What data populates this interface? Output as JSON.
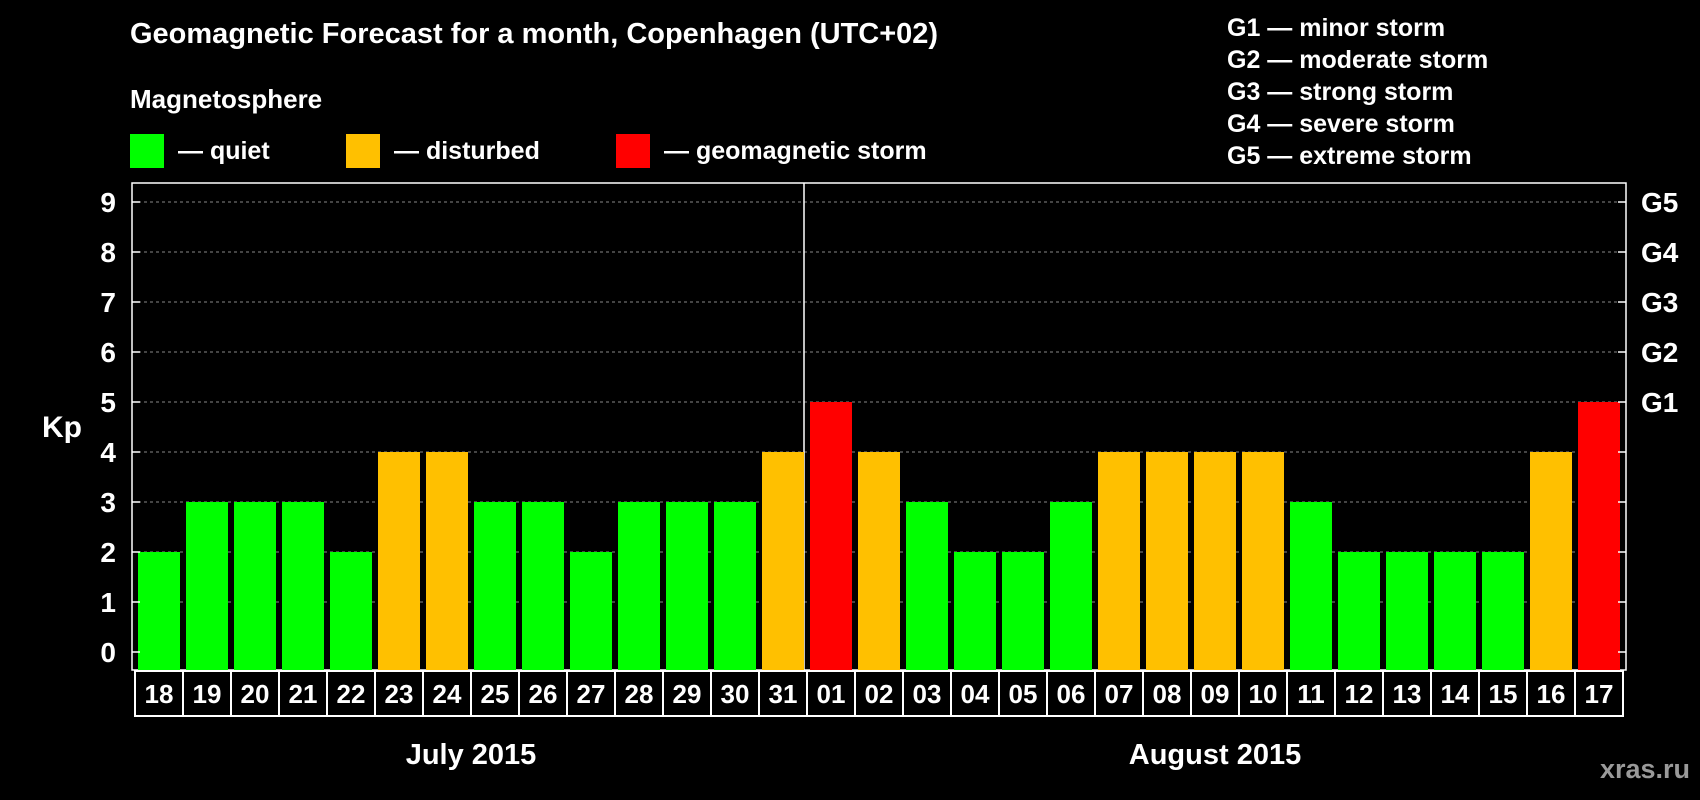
{
  "title": "Geomagnetic Forecast for a month, Copenhagen (UTC+02)",
  "magnetosphere_label": "Magnetosphere",
  "legend": [
    {
      "color": "#00ff00",
      "label": "— quiet"
    },
    {
      "color": "#ffc000",
      "label": "— disturbed"
    },
    {
      "color": "#ff0000",
      "label": "— geomagnetic storm"
    }
  ],
  "storm_scale": [
    "G1 — minor storm",
    "G2 — moderate storm",
    "G3 — strong storm",
    "G4 — severe storm",
    "G5 — extreme storm"
  ],
  "watermark": "xras.ru",
  "chart_data": {
    "type": "bar",
    "ylabel": "Kp",
    "ylim": [
      0,
      9
    ],
    "yticks": [
      0,
      1,
      2,
      3,
      4,
      5,
      6,
      7,
      8,
      9
    ],
    "right_axis_labels": [
      {
        "kp": 5,
        "label": "G1"
      },
      {
        "kp": 6,
        "label": "G2"
      },
      {
        "kp": 7,
        "label": "G3"
      },
      {
        "kp": 8,
        "label": "G4"
      },
      {
        "kp": 9,
        "label": "G5"
      }
    ],
    "grid": true,
    "categories": [
      "18",
      "19",
      "20",
      "21",
      "22",
      "23",
      "24",
      "25",
      "26",
      "27",
      "28",
      "29",
      "30",
      "31",
      "01",
      "02",
      "03",
      "04",
      "05",
      "06",
      "07",
      "08",
      "09",
      "10",
      "11",
      "12",
      "13",
      "14",
      "15",
      "16",
      "17"
    ],
    "values": [
      2,
      3,
      3,
      3,
      2,
      4,
      4,
      3,
      3,
      2,
      3,
      3,
      3,
      4,
      5,
      4,
      3,
      2,
      2,
      3,
      4,
      4,
      4,
      4,
      3,
      2,
      2,
      2,
      2,
      4,
      5
    ],
    "colors": {
      "quiet": "#00ff00",
      "disturbed": "#ffc000",
      "storm": "#ff0000"
    },
    "months": [
      {
        "label": "July 2015",
        "days": 14
      },
      {
        "label": "August 2015",
        "days": 17
      }
    ]
  }
}
